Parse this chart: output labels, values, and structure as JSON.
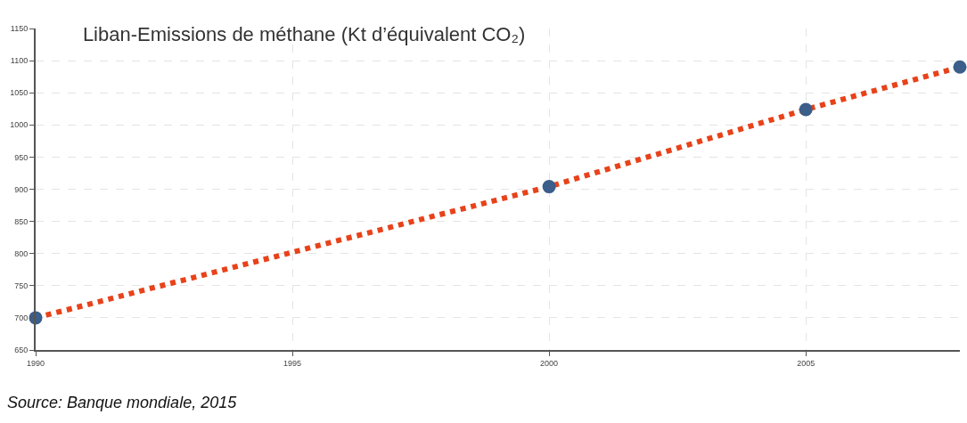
{
  "chart_data": {
    "type": "line",
    "title": "Liban-Emissions de méthane (Kt d’équivalent CO₂)",
    "x": [
      1990,
      2000,
      2005,
      2008
    ],
    "series": [
      {
        "color": "#e8421a",
        "colors": [
          "#3b5e8a",
          "#3b5e8a",
          "#3b5e8a",
          "#3b5e8a"
        ],
        "values": [
          700,
          904,
          1024,
          1090
        ]
      }
    ],
    "xlim": [
      1990,
      2008
    ],
    "xticks": [
      1990,
      1995,
      2000,
      2005
    ],
    "ylim": [
      650,
      1150
    ],
    "yticks": [
      650,
      700,
      750,
      800,
      850,
      900,
      950,
      1000,
      1050,
      1100,
      1150
    ],
    "grid": true,
    "marker": "circle",
    "line_style": "dotted",
    "annotations": [
      "Source: Banque mondiale, 2015"
    ]
  }
}
